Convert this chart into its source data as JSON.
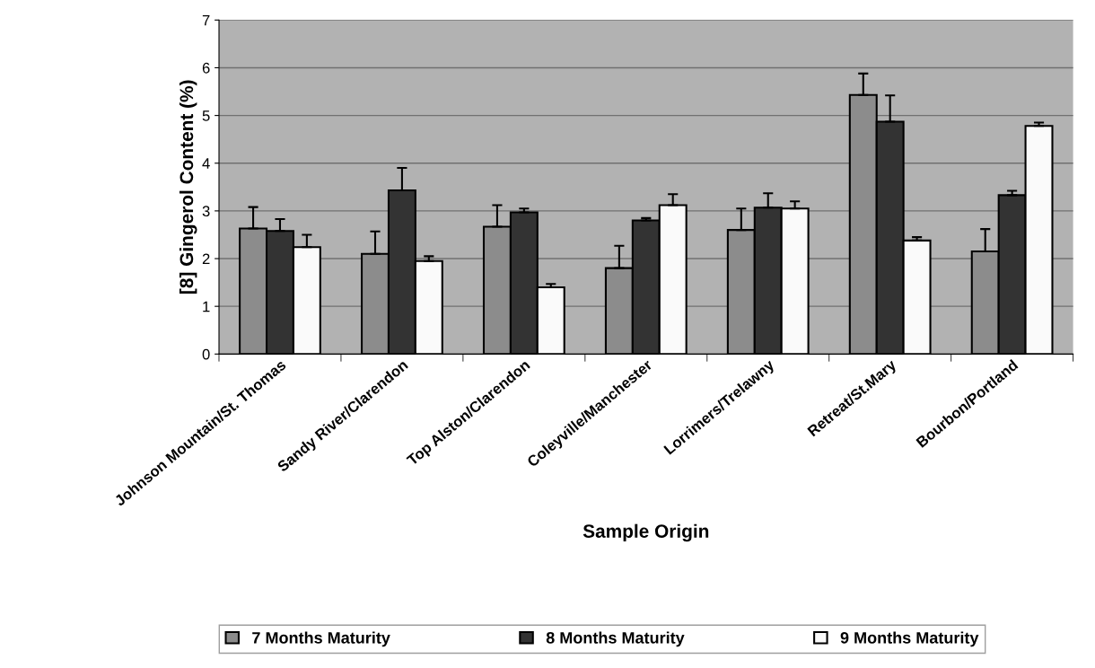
{
  "chart_data": {
    "type": "bar",
    "categories": [
      "Johnson Mountain/St. Thomas",
      "Sandy River/Clarendon",
      "Top Alston/Clarendon",
      "Coleyville/Manchester",
      "Lorrimers/Trelawny",
      "Retreat/St.Mary",
      "Bourbon/Portland"
    ],
    "series": [
      {
        "name": "7 Months Maturity",
        "color": "#8c8c8c",
        "values": [
          2.63,
          2.1,
          2.67,
          1.8,
          2.6,
          5.43,
          2.15
        ],
        "errors": [
          [
            2.63,
            3.08
          ],
          [
            2.1,
            2.57
          ],
          [
            2.67,
            3.12
          ],
          [
            1.8,
            2.27
          ],
          [
            2.6,
            3.05
          ],
          [
            5.43,
            5.88
          ],
          [
            2.15,
            2.62
          ]
        ]
      },
      {
        "name": "8 Months Maturity",
        "color": "#333333",
        "values": [
          2.58,
          3.43,
          2.97,
          2.8,
          3.07,
          4.87,
          3.33
        ],
        "errors": [
          [
            2.58,
            2.83
          ],
          [
            3.43,
            3.9
          ],
          [
            2.97,
            3.05
          ],
          [
            2.8,
            2.85
          ],
          [
            3.07,
            3.37
          ],
          [
            4.87,
            5.42
          ],
          [
            3.33,
            3.42
          ]
        ]
      },
      {
        "name": "9 Months Maturity",
        "color": "#fafafa",
        "values": [
          2.24,
          1.95,
          1.4,
          3.12,
          3.05,
          2.38,
          4.78
        ],
        "errors": [
          [
            2.24,
            2.5
          ],
          [
            1.95,
            2.05
          ],
          [
            1.4,
            1.47
          ],
          [
            3.12,
            3.35
          ],
          [
            3.05,
            3.2
          ],
          [
            2.38,
            2.45
          ],
          [
            4.78,
            4.85
          ]
        ]
      }
    ],
    "xlabel": "Sample Origin",
    "ylabel": "[8] Gingerol Content (%)",
    "ylim": [
      0,
      7
    ],
    "yticks": [
      0,
      1,
      2,
      3,
      4,
      5,
      6,
      7
    ],
    "grid": "y",
    "legend": "bottom"
  }
}
